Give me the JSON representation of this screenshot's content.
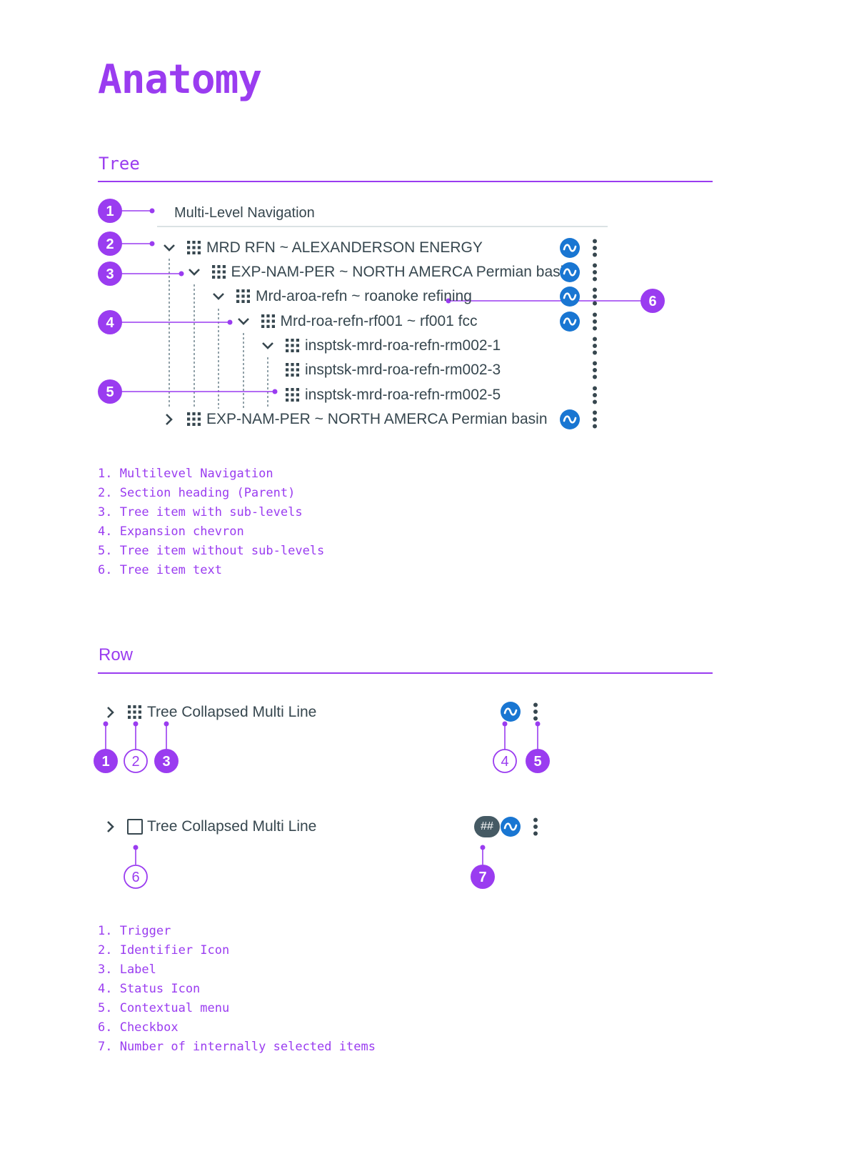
{
  "title": "Anatomy",
  "tree_section": {
    "heading": "Tree",
    "nav_label": "Multi-Level Navigation",
    "items": [
      {
        "label": "MRD RFN ~ ALEXANDERSON ENERGY",
        "chevron": "down",
        "status": true
      },
      {
        "label": "EXP-NAM-PER ~ NORTH AMERCA Permian basin",
        "chevron": "down",
        "status": true
      },
      {
        "label": "Mrd-aroa-refn ~ roanoke refining",
        "chevron": "down",
        "status": true
      },
      {
        "label": "Mrd-roa-refn-rf001 ~ rf001 fcc",
        "chevron": "down",
        "status": true
      },
      {
        "label": "insptsk-mrd-roa-refn-rm002-1",
        "chevron": "down",
        "status": false
      },
      {
        "label": "insptsk-mrd-roa-refn-rm002-3",
        "chevron": "none",
        "status": false
      },
      {
        "label": "insptsk-mrd-roa-refn-rm002-5",
        "chevron": "none",
        "status": false
      },
      {
        "label": "EXP-NAM-PER ~ NORTH AMERCA Permian basin",
        "chevron": "right",
        "status": true
      }
    ],
    "callouts": [
      "1",
      "2",
      "3",
      "4",
      "5",
      "6"
    ],
    "legend": [
      "1. Multilevel Navigation",
      "2. Section heading (Parent)",
      "3. Tree item with sub-levels",
      "4. Expansion chevron",
      "5. Tree item without sub-levels",
      "6. Tree item text"
    ]
  },
  "row_section": {
    "heading": "Row",
    "row1_label": "Tree Collapsed Multi Line",
    "row2_label": "Tree Collapsed Multi Line",
    "count_badge": "##",
    "callouts": [
      "1",
      "2",
      "3",
      "4",
      "5",
      "6",
      "7"
    ],
    "legend": [
      "1. Trigger",
      "2. Identifier Icon",
      "3. Label",
      "4. Status Icon",
      "5. Contextual menu",
      "6. Checkbox",
      "7. Number of internally selected items"
    ]
  },
  "colors": {
    "accent": "#9a3cf0",
    "status_blue": "#1976d2",
    "icon_dark": "#37474f",
    "badge_dark": "#455a64"
  },
  "icons": {
    "chevron_down": "chevron-down-icon",
    "chevron_right": "chevron-right-icon",
    "identifier": "grid-icon",
    "status": "wave-status-icon",
    "menu": "kebab-menu-icon",
    "checkbox": "checkbox-icon"
  }
}
